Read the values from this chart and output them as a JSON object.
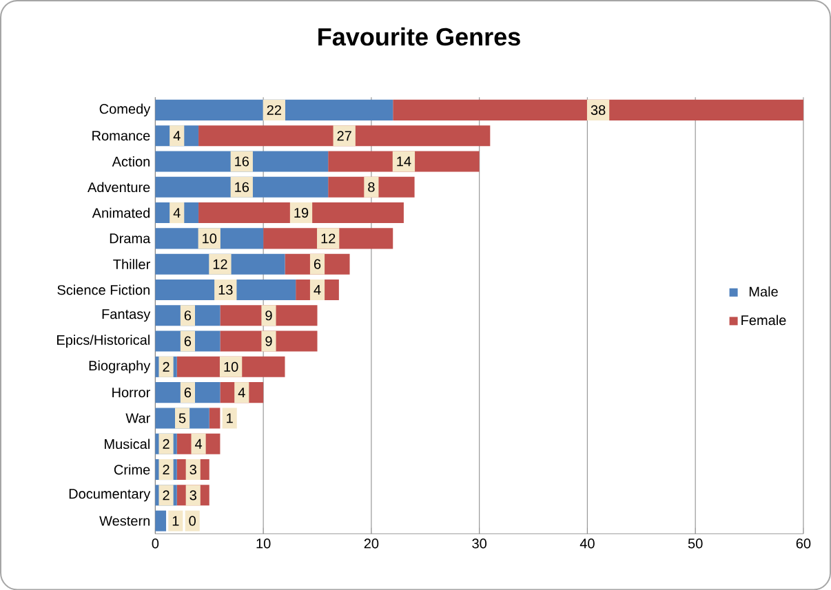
{
  "chart_data": {
    "type": "bar",
    "orientation": "horizontal",
    "stacked": true,
    "title": "Favourite Genres",
    "categories": [
      "Comedy",
      "Romance",
      "Action",
      "Adventure",
      "Animated",
      "Drama",
      "Thiller",
      "Science Fiction",
      "Fantasy",
      "Epics/Historical",
      "Biography",
      "Horror",
      "War",
      "Musical",
      "Crime",
      "Documentary",
      "Western"
    ],
    "series": [
      {
        "name": "Male",
        "color": "#4f81bd",
        "values": [
          22,
          4,
          16,
          16,
          4,
          10,
          12,
          13,
          6,
          6,
          2,
          6,
          5,
          2,
          2,
          2,
          1
        ]
      },
      {
        "name": "Female",
        "color": "#c0504d",
        "values": [
          38,
          27,
          14,
          8,
          19,
          12,
          6,
          4,
          9,
          9,
          10,
          4,
          1,
          4,
          3,
          3,
          0
        ]
      }
    ],
    "xlim": [
      0,
      60
    ],
    "xticks": [
      0,
      10,
      20,
      30,
      40,
      50,
      60
    ],
    "grid": "x",
    "legend": "right",
    "data_labels": true
  }
}
